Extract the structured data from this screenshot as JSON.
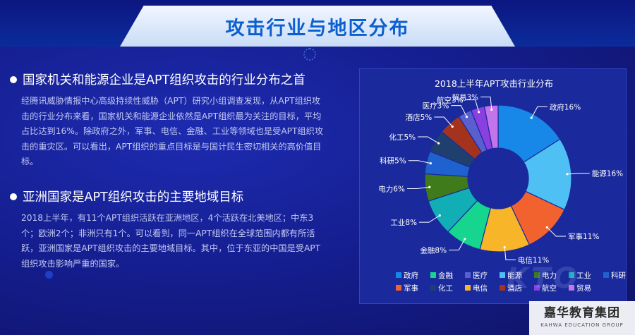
{
  "page": {
    "title": "攻击行业与地区分布"
  },
  "sections": [
    {
      "heading": "国家机关和能源企业是APT组织攻击的行业分布之首",
      "lines": [
        "经腾讯威胁情报中心高级持续性威胁（APT）研究小组调查发现，从APT组织攻",
        "击的行业分布来看，国家机关和能源企业依然是APT组织最为关注的目标，平均",
        "占比达到16%。除政府之外，军事、电信、金融、工业等领域也是受APT组织攻",
        "击的重灾区。可以看出，APT组织的重点目标是与国计民生密切相关的高价值目",
        "标。"
      ]
    },
    {
      "heading": "亚洲国家是APT组织攻击的主要地域目标",
      "lines": [
        "2018上半年，有11个APT组织活跃在亚洲地区，4个活跃在北美地区；中东3",
        "个；欧洲2个；非洲只有1个。可以看到，同一APT组织在全球范围内都有所活",
        "跃，亚洲国家是APT组织攻击的主要地域目标。其中，位于东亚的中国是受APT",
        "组织攻击影响严重的国家。"
      ]
    }
  ],
  "watermark": {
    "cn": "嘉华教育集团",
    "en": "KAHWA EDUCATION GROUP"
  },
  "chart_data": {
    "type": "pie",
    "variant": "donut",
    "title": "2018上半年APT攻击行业分布",
    "unit": "%",
    "slices": [
      {
        "name": "政府",
        "value": 16,
        "label": "政府16%",
        "color": "#1787e8"
      },
      {
        "name": "能源",
        "value": 16,
        "label": "能源16%",
        "color": "#4fc0f3"
      },
      {
        "name": "军事",
        "value": 11,
        "label": "军事11%",
        "color": "#f2622f"
      },
      {
        "name": "电信",
        "value": 11,
        "label": "电信11%",
        "color": "#f7b52a"
      },
      {
        "name": "金融",
        "value": 8,
        "label": "金融8%",
        "color": "#16d58f"
      },
      {
        "name": "工业",
        "value": 8,
        "label": "工业8%",
        "color": "#12aeb6"
      },
      {
        "name": "电力",
        "value": 6,
        "label": "电力6%",
        "color": "#3f7a1b"
      },
      {
        "name": "科研",
        "value": 5,
        "label": "科研5%",
        "color": "#1f62cf"
      },
      {
        "name": "化工",
        "value": 5,
        "label": "化工5%",
        "color": "#1f3f6f"
      },
      {
        "name": "酒店",
        "value": 5,
        "label": "酒店5%",
        "color": "#a4331d"
      },
      {
        "name": "医疗",
        "value": 3,
        "label": "医疗3%",
        "color": "#5a5fd0"
      },
      {
        "name": "航空",
        "value": 3,
        "label": "航空3%",
        "color": "#8a3fe0"
      },
      {
        "name": "贸易",
        "value": 3,
        "label": "贸易3%",
        "color": "#c274e8"
      }
    ],
    "legend": {
      "placement": "bottom",
      "rows": [
        [
          "政府",
          "金融",
          "医疗",
          "能源",
          "电力",
          "工业",
          "科研"
        ],
        [
          "军事",
          "化工",
          "电信",
          "酒店",
          "航空",
          "贸易"
        ]
      ]
    }
  }
}
